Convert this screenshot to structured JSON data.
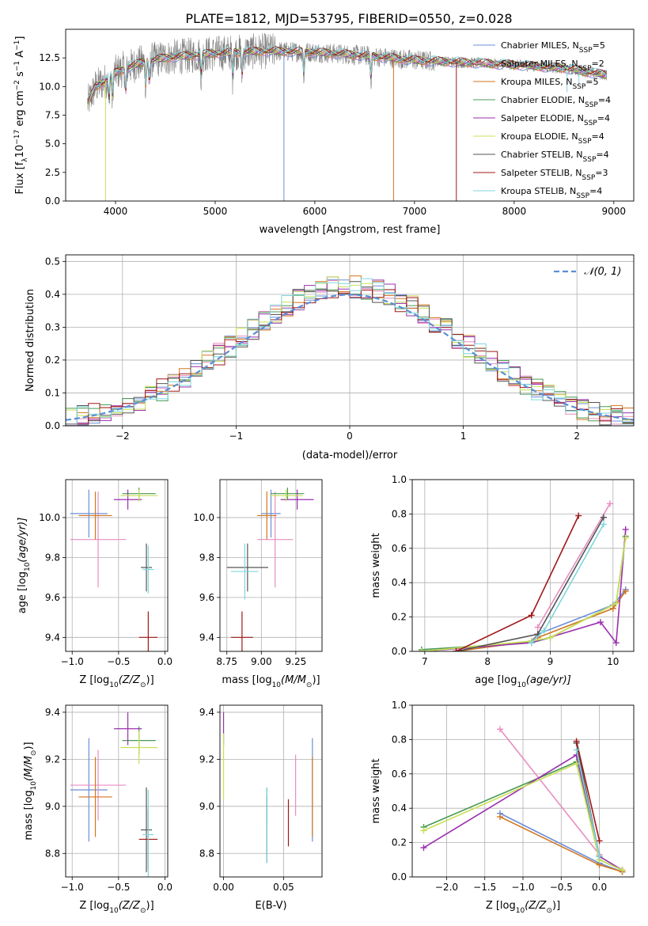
{
  "figure": {
    "title": "PLATE=1812, MJD=53795, FIBERID=0550, z=0.028",
    "colors": [
      "#6b8fd8",
      "#e88ec0",
      "#d2761f",
      "#4a9a55",
      "#9a2fae",
      "#c9e055",
      "#555555",
      "#a01818",
      "#7fd6dc"
    ],
    "legend_bases": [
      "Chabrier MILES, N",
      "Salpeter MILES, N",
      "Kroupa MILES, N",
      "Chabrier ELODIE, N",
      "Salpeter ELODIE, N",
      "Kroupa ELODIE, N",
      "Chabrier STELIB, N",
      "Salpeter STELIB, N",
      "Kroupa STELIB, N"
    ],
    "legend_sub": "SSP",
    "legend_vals": [
      "=5",
      "=2",
      "=5",
      "=4",
      "=4",
      "=4",
      "=4",
      "=3",
      "=4"
    ]
  },
  "chart_data": [
    {
      "id": "spectrum",
      "type": "line",
      "xlabel": "wavelength [Angstrom, rest frame]",
      "ylabel": "Flux [f",
      "ylabel_parts": [
        "Flux [f",
        "λ",
        "10",
        "−17",
        " erg cm",
        "−2",
        " s",
        "−1",
        " A",
        "−1",
        "]"
      ],
      "xlim": [
        3500,
        9200
      ],
      "ylim": [
        0,
        15
      ],
      "xticks": [
        4000,
        5000,
        6000,
        7000,
        8000,
        9000
      ],
      "yticks": [
        0.0,
        2.5,
        5.0,
        7.5,
        10.0,
        12.5
      ],
      "ytick_labels": [
        "0.0",
        "2.5",
        "5.0",
        "7.5",
        "10.0",
        "12.5"
      ],
      "data_range": [
        3720,
        8930
      ],
      "continuum_x": [
        3720,
        3800,
        3900,
        4000,
        4100,
        4300,
        4500,
        5000,
        5500,
        6000,
        6500,
        7000,
        7500,
        8000,
        8500,
        8930
      ],
      "continuum_y": [
        8.5,
        10.0,
        10.5,
        11.2,
        11.6,
        12.2,
        12.5,
        12.9,
        13.1,
        13.0,
        12.7,
        12.3,
        12.1,
        11.9,
        11.6,
        11.0
      ],
      "observed_color": "#808080",
      "dips": [
        {
          "series": 0,
          "x": 5690,
          "y": 0.0
        },
        {
          "series": 2,
          "x": 6790,
          "y": 0.0
        },
        {
          "series": 7,
          "x": 7420,
          "y": 0.0
        },
        {
          "series": 5,
          "x": 3900,
          "y": 0.0
        },
        {
          "series": 8,
          "x": 8530,
          "y": 9.5
        },
        {
          "series": 8,
          "x": 8650,
          "y": 10.2
        }
      ]
    },
    {
      "id": "residuals",
      "type": "step",
      "xlabel": "(data-model)/error",
      "ylabel": "Normed distribution",
      "xlim": [
        -2.5,
        2.5
      ],
      "ylim": [
        0,
        0.52
      ],
      "xticks": [
        -2,
        -1,
        0,
        1,
        2
      ],
      "xtick_labels": [
        "−2",
        "−1",
        "0",
        "1",
        "2"
      ],
      "yticks": [
        0.0,
        0.1,
        0.2,
        0.3,
        0.4,
        0.5
      ],
      "ytick_labels": [
        "0.0",
        "0.1",
        "0.2",
        "0.3",
        "0.4",
        "0.5"
      ],
      "bin_width": 0.1,
      "legend_label": "𝒩(0, 1)",
      "normal": {
        "mu": 0,
        "sigma": 1,
        "color": "#5b8ed6"
      }
    },
    {
      "id": "age-vs-Z",
      "type": "errorbar",
      "xlabel": "Z [log",
      "xlabel_parts": [
        "Z [log",
        "10",
        "(Z/Z",
        "⊙",
        ")]"
      ],
      "ylabel_parts": [
        "age  [log",
        "10",
        "(age/yr)]"
      ],
      "xlim": [
        -1.07,
        0.03
      ],
      "ylim": [
        9.33,
        10.19
      ],
      "xticks": [
        -1.0,
        -0.5,
        0.0
      ],
      "xtick_labels": [
        "−1.0",
        "−0.5",
        "0.0"
      ],
      "yticks": [
        9.4,
        9.6,
        9.8,
        10.0
      ],
      "ytick_labels": [
        "9.4",
        "9.6",
        "9.8",
        "10.0"
      ],
      "points": [
        {
          "s": 0,
          "x": -0.82,
          "y": 10.02,
          "xerr": 0.2,
          "yerr": 0.12
        },
        {
          "s": 1,
          "x": -0.72,
          "y": 9.89,
          "xerr": 0.3,
          "yerr": 0.24
        },
        {
          "s": 2,
          "x": -0.75,
          "y": 10.01,
          "xerr": 0.18,
          "yerr": 0.12
        },
        {
          "s": 3,
          "x": -0.28,
          "y": 10.12,
          "xerr": 0.18,
          "yerr": 0.03
        },
        {
          "s": 4,
          "x": -0.4,
          "y": 10.09,
          "xerr": 0.15,
          "yerr": 0.05
        },
        {
          "s": 5,
          "x": -0.28,
          "y": 10.11,
          "xerr": 0.2,
          "yerr": 0.03
        },
        {
          "s": 6,
          "x": -0.2,
          "y": 9.75,
          "xerr": 0.06,
          "yerr": 0.12
        },
        {
          "s": 7,
          "x": -0.18,
          "y": 9.4,
          "xerr": 0.1,
          "yerr": 0.13
        },
        {
          "s": 8,
          "x": -0.18,
          "y": 9.74,
          "xerr": 0.06,
          "yerr": 0.12
        }
      ]
    },
    {
      "id": "age-vs-mass",
      "type": "errorbar",
      "xlabel": "mass [log",
      "xlabel_parts": [
        "mass [log",
        "10",
        "(M/M",
        "⊙",
        ")]"
      ],
      "xlim": [
        8.7,
        9.44
      ],
      "ylim": [
        9.33,
        10.19
      ],
      "xticks": [
        8.75,
        9.0,
        9.25
      ],
      "xtick_labels": [
        "8.75",
        "9.00",
        "9.25"
      ],
      "yticks": [
        9.4,
        9.6,
        9.8,
        10.0
      ],
      "ytick_labels": [
        "9.4",
        "9.6",
        "9.8",
        "10.0"
      ],
      "points": [
        {
          "s": 0,
          "x": 9.07,
          "y": 10.02,
          "xerr": 0.07,
          "yerr": 0.12
        },
        {
          "s": 1,
          "x": 9.1,
          "y": 9.89,
          "xerr": 0.13,
          "yerr": 0.24
        },
        {
          "s": 2,
          "x": 9.04,
          "y": 10.01,
          "xerr": 0.07,
          "yerr": 0.12
        },
        {
          "s": 3,
          "x": 9.19,
          "y": 10.12,
          "xerr": 0.12,
          "yerr": 0.03
        },
        {
          "s": 4,
          "x": 9.26,
          "y": 10.09,
          "xerr": 0.12,
          "yerr": 0.05
        },
        {
          "s": 5,
          "x": 9.18,
          "y": 10.11,
          "xerr": 0.12,
          "yerr": 0.03
        },
        {
          "s": 6,
          "x": 8.9,
          "y": 9.75,
          "xerr": 0.15,
          "yerr": 0.12
        },
        {
          "s": 7,
          "x": 8.86,
          "y": 9.4,
          "xerr": 0.08,
          "yerr": 0.13
        },
        {
          "s": 8,
          "x": 8.88,
          "y": 9.73,
          "xerr": 0.1,
          "yerr": 0.14
        }
      ]
    },
    {
      "id": "weight-vs-age",
      "type": "line",
      "xlabel": "age",
      "xlabel_parts": [
        "age  [log",
        "10",
        "(age/yr)]"
      ],
      "ylabel": "mass weight",
      "xlim": [
        6.8,
        10.33
      ],
      "ylim": [
        0,
        1
      ],
      "xticks": [
        7,
        8,
        9,
        10
      ],
      "xtick_labels": [
        "7",
        "8",
        "9",
        "10"
      ],
      "yticks": [
        0.0,
        0.2,
        0.4,
        0.6,
        0.8,
        1.0
      ],
      "ytick_labels": [
        "0.0",
        "0.2",
        "0.4",
        "0.6",
        "0.8",
        "1.0"
      ],
      "series": [
        {
          "s": 0,
          "x": [
            7.5,
            8.7,
            8.8,
            10.0,
            10.2
          ],
          "y": [
            0.0,
            0.06,
            0.1,
            0.27,
            0.36
          ]
        },
        {
          "s": 1,
          "x": [
            8.8,
            9.95
          ],
          "y": [
            0.14,
            0.86
          ]
        },
        {
          "s": 2,
          "x": [
            7.5,
            8.7,
            8.8,
            10.0,
            10.2
          ],
          "y": [
            0.0,
            0.06,
            0.08,
            0.25,
            0.35
          ]
        },
        {
          "s": 3,
          "x": [
            6.95,
            8.7,
            9.0,
            10.05,
            10.2
          ],
          "y": [
            0.01,
            0.05,
            0.08,
            0.28,
            0.67
          ]
        },
        {
          "s": 4,
          "x": [
            6.95,
            8.7,
            9.8,
            10.05,
            10.2
          ],
          "y": [
            0.0,
            0.05,
            0.17,
            0.05,
            0.71
          ]
        },
        {
          "s": 5,
          "x": [
            6.95,
            8.7,
            9.0,
            10.05,
            10.2
          ],
          "y": [
            0.0,
            0.06,
            0.08,
            0.28,
            0.66
          ]
        },
        {
          "s": 6,
          "x": [
            7.5,
            8.8,
            9.85
          ],
          "y": [
            0.0,
            0.1,
            0.78
          ]
        },
        {
          "s": 7,
          "x": [
            7.5,
            8.7,
            9.45
          ],
          "y": [
            0.0,
            0.21,
            0.79
          ]
        },
        {
          "s": 8,
          "x": [
            8.7,
            8.9,
            9.85
          ],
          "y": [
            0.05,
            0.12,
            0.74
          ]
        }
      ]
    },
    {
      "id": "mass-vs-Z",
      "type": "errorbar",
      "xlabel_parts": [
        "Z [log",
        "10",
        "(Z/Z",
        "⊙",
        ")]"
      ],
      "ylabel_parts": [
        "mass [log",
        "10",
        "(M/M",
        "⊙",
        ")]"
      ],
      "xlim": [
        -1.07,
        0.03
      ],
      "ylim": [
        8.7,
        9.43
      ],
      "xticks": [
        -1.0,
        -0.5,
        0.0
      ],
      "xtick_labels": [
        "−1.0",
        "−0.5",
        "0.0"
      ],
      "yticks": [
        8.8,
        9.0,
        9.2,
        9.4
      ],
      "ytick_labels": [
        "8.8",
        "9.0",
        "9.2",
        "9.4"
      ],
      "points": [
        {
          "s": 0,
          "x": -0.82,
          "y": 9.07,
          "xerr": 0.2,
          "yerr": 0.22
        },
        {
          "s": 1,
          "x": -0.72,
          "y": 9.09,
          "xerr": 0.3,
          "yerr": 0.15
        },
        {
          "s": 2,
          "x": -0.75,
          "y": 9.04,
          "xerr": 0.18,
          "yerr": 0.17
        },
        {
          "s": 3,
          "x": -0.28,
          "y": 9.28,
          "xerr": 0.18,
          "yerr": 0.06
        },
        {
          "s": 4,
          "x": -0.4,
          "y": 9.33,
          "xerr": 0.15,
          "yerr": 0.07
        },
        {
          "s": 5,
          "x": -0.28,
          "y": 9.25,
          "xerr": 0.2,
          "yerr": 0.07
        },
        {
          "s": 6,
          "x": -0.2,
          "y": 8.9,
          "xerr": 0.06,
          "yerr": 0.18
        },
        {
          "s": 7,
          "x": -0.18,
          "y": 8.86,
          "xerr": 0.1,
          "yerr": 0.13
        },
        {
          "s": 8,
          "x": -0.18,
          "y": 8.88,
          "xerr": 0.06,
          "yerr": 0.19
        }
      ]
    },
    {
      "id": "mass-vs-EBV",
      "type": "errorbar",
      "xlabel": "E(B-V)",
      "xlim": [
        -0.003,
        0.082
      ],
      "ylim": [
        8.7,
        9.43
      ],
      "xticks": [
        0.0,
        0.05
      ],
      "xtick_labels": [
        "0.00",
        "0.05"
      ],
      "yticks": [
        8.8,
        9.0,
        9.2,
        9.4
      ],
      "ytick_labels": [
        "8.8",
        "9.0",
        "9.2",
        "9.4"
      ],
      "points": [
        {
          "s": 0,
          "x": 0.074,
          "y": 9.07,
          "xerr": 0.0,
          "yerr": 0.22
        },
        {
          "s": 1,
          "x": 0.06,
          "y": 9.09,
          "xerr": 0.0,
          "yerr": 0.13
        },
        {
          "s": 2,
          "x": 0.074,
          "y": 9.04,
          "xerr": 0.0,
          "yerr": 0.17
        },
        {
          "s": 3,
          "x": 0.036,
          "y": 9.0,
          "xerr": 0.0,
          "yerr": 0.08
        },
        {
          "s": 4,
          "x": 0.0,
          "y": 9.33,
          "xerr": 0.0,
          "yerr": 0.07
        },
        {
          "s": 5,
          "x": 0.0,
          "y": 9.17,
          "xerr": 0.0,
          "yerr": 0.14
        },
        {
          "s": 6,
          "x": 0.036,
          "y": 8.9,
          "xerr": 0.0,
          "yerr": 0.14
        },
        {
          "s": 7,
          "x": 0.054,
          "y": 8.93,
          "xerr": 0.0,
          "yerr": 0.1
        },
        {
          "s": 8,
          "x": 0.036,
          "y": 8.92,
          "xerr": 0.0,
          "yerr": 0.16
        }
      ]
    },
    {
      "id": "weight-vs-Z",
      "type": "line",
      "xlabel_parts": [
        "Z [log",
        "10",
        "(Z/Z",
        "⊙",
        ")]"
      ],
      "ylabel": "mass weight",
      "xlim": [
        -2.45,
        0.45
      ],
      "ylim": [
        0,
        1
      ],
      "xticks": [
        -2.0,
        -1.5,
        -1.0,
        -0.5,
        0.0
      ],
      "xtick_labels": [
        "−2.0",
        "−1.5",
        "−1.0",
        "−0.5",
        "0.0"
      ],
      "yticks": [
        0.0,
        0.2,
        0.4,
        0.6,
        0.8,
        1.0
      ],
      "ytick_labels": [
        "0.0",
        "0.2",
        "0.4",
        "0.6",
        "0.8",
        "1.0"
      ],
      "series": [
        {
          "s": 0,
          "x": [
            -1.3,
            0.0,
            0.3
          ],
          "y": [
            0.37,
            0.08,
            0.03
          ]
        },
        {
          "s": 1,
          "x": [
            -1.3,
            0.0
          ],
          "y": [
            0.86,
            0.13
          ]
        },
        {
          "s": 2,
          "x": [
            -1.3,
            0.0,
            0.3
          ],
          "y": [
            0.35,
            0.07,
            0.03
          ]
        },
        {
          "s": 3,
          "x": [
            -2.3,
            -0.3,
            0.0,
            0.3
          ],
          "y": [
            0.29,
            0.67,
            0.1,
            0.04
          ]
        },
        {
          "s": 4,
          "x": [
            -2.3,
            -0.3,
            0.0,
            0.3
          ],
          "y": [
            0.17,
            0.71,
            0.12,
            0.04
          ]
        },
        {
          "s": 5,
          "x": [
            -2.3,
            -0.3,
            0.0,
            0.3
          ],
          "y": [
            0.27,
            0.66,
            0.1,
            0.04
          ]
        },
        {
          "s": 6,
          "x": [
            -0.3,
            0.0
          ],
          "y": [
            0.78,
            0.12
          ]
        },
        {
          "s": 7,
          "x": [
            -0.3,
            0.0
          ],
          "y": [
            0.79,
            0.21
          ]
        },
        {
          "s": 8,
          "x": [
            -0.3,
            0.0
          ],
          "y": [
            0.74,
            0.12
          ]
        }
      ]
    }
  ]
}
